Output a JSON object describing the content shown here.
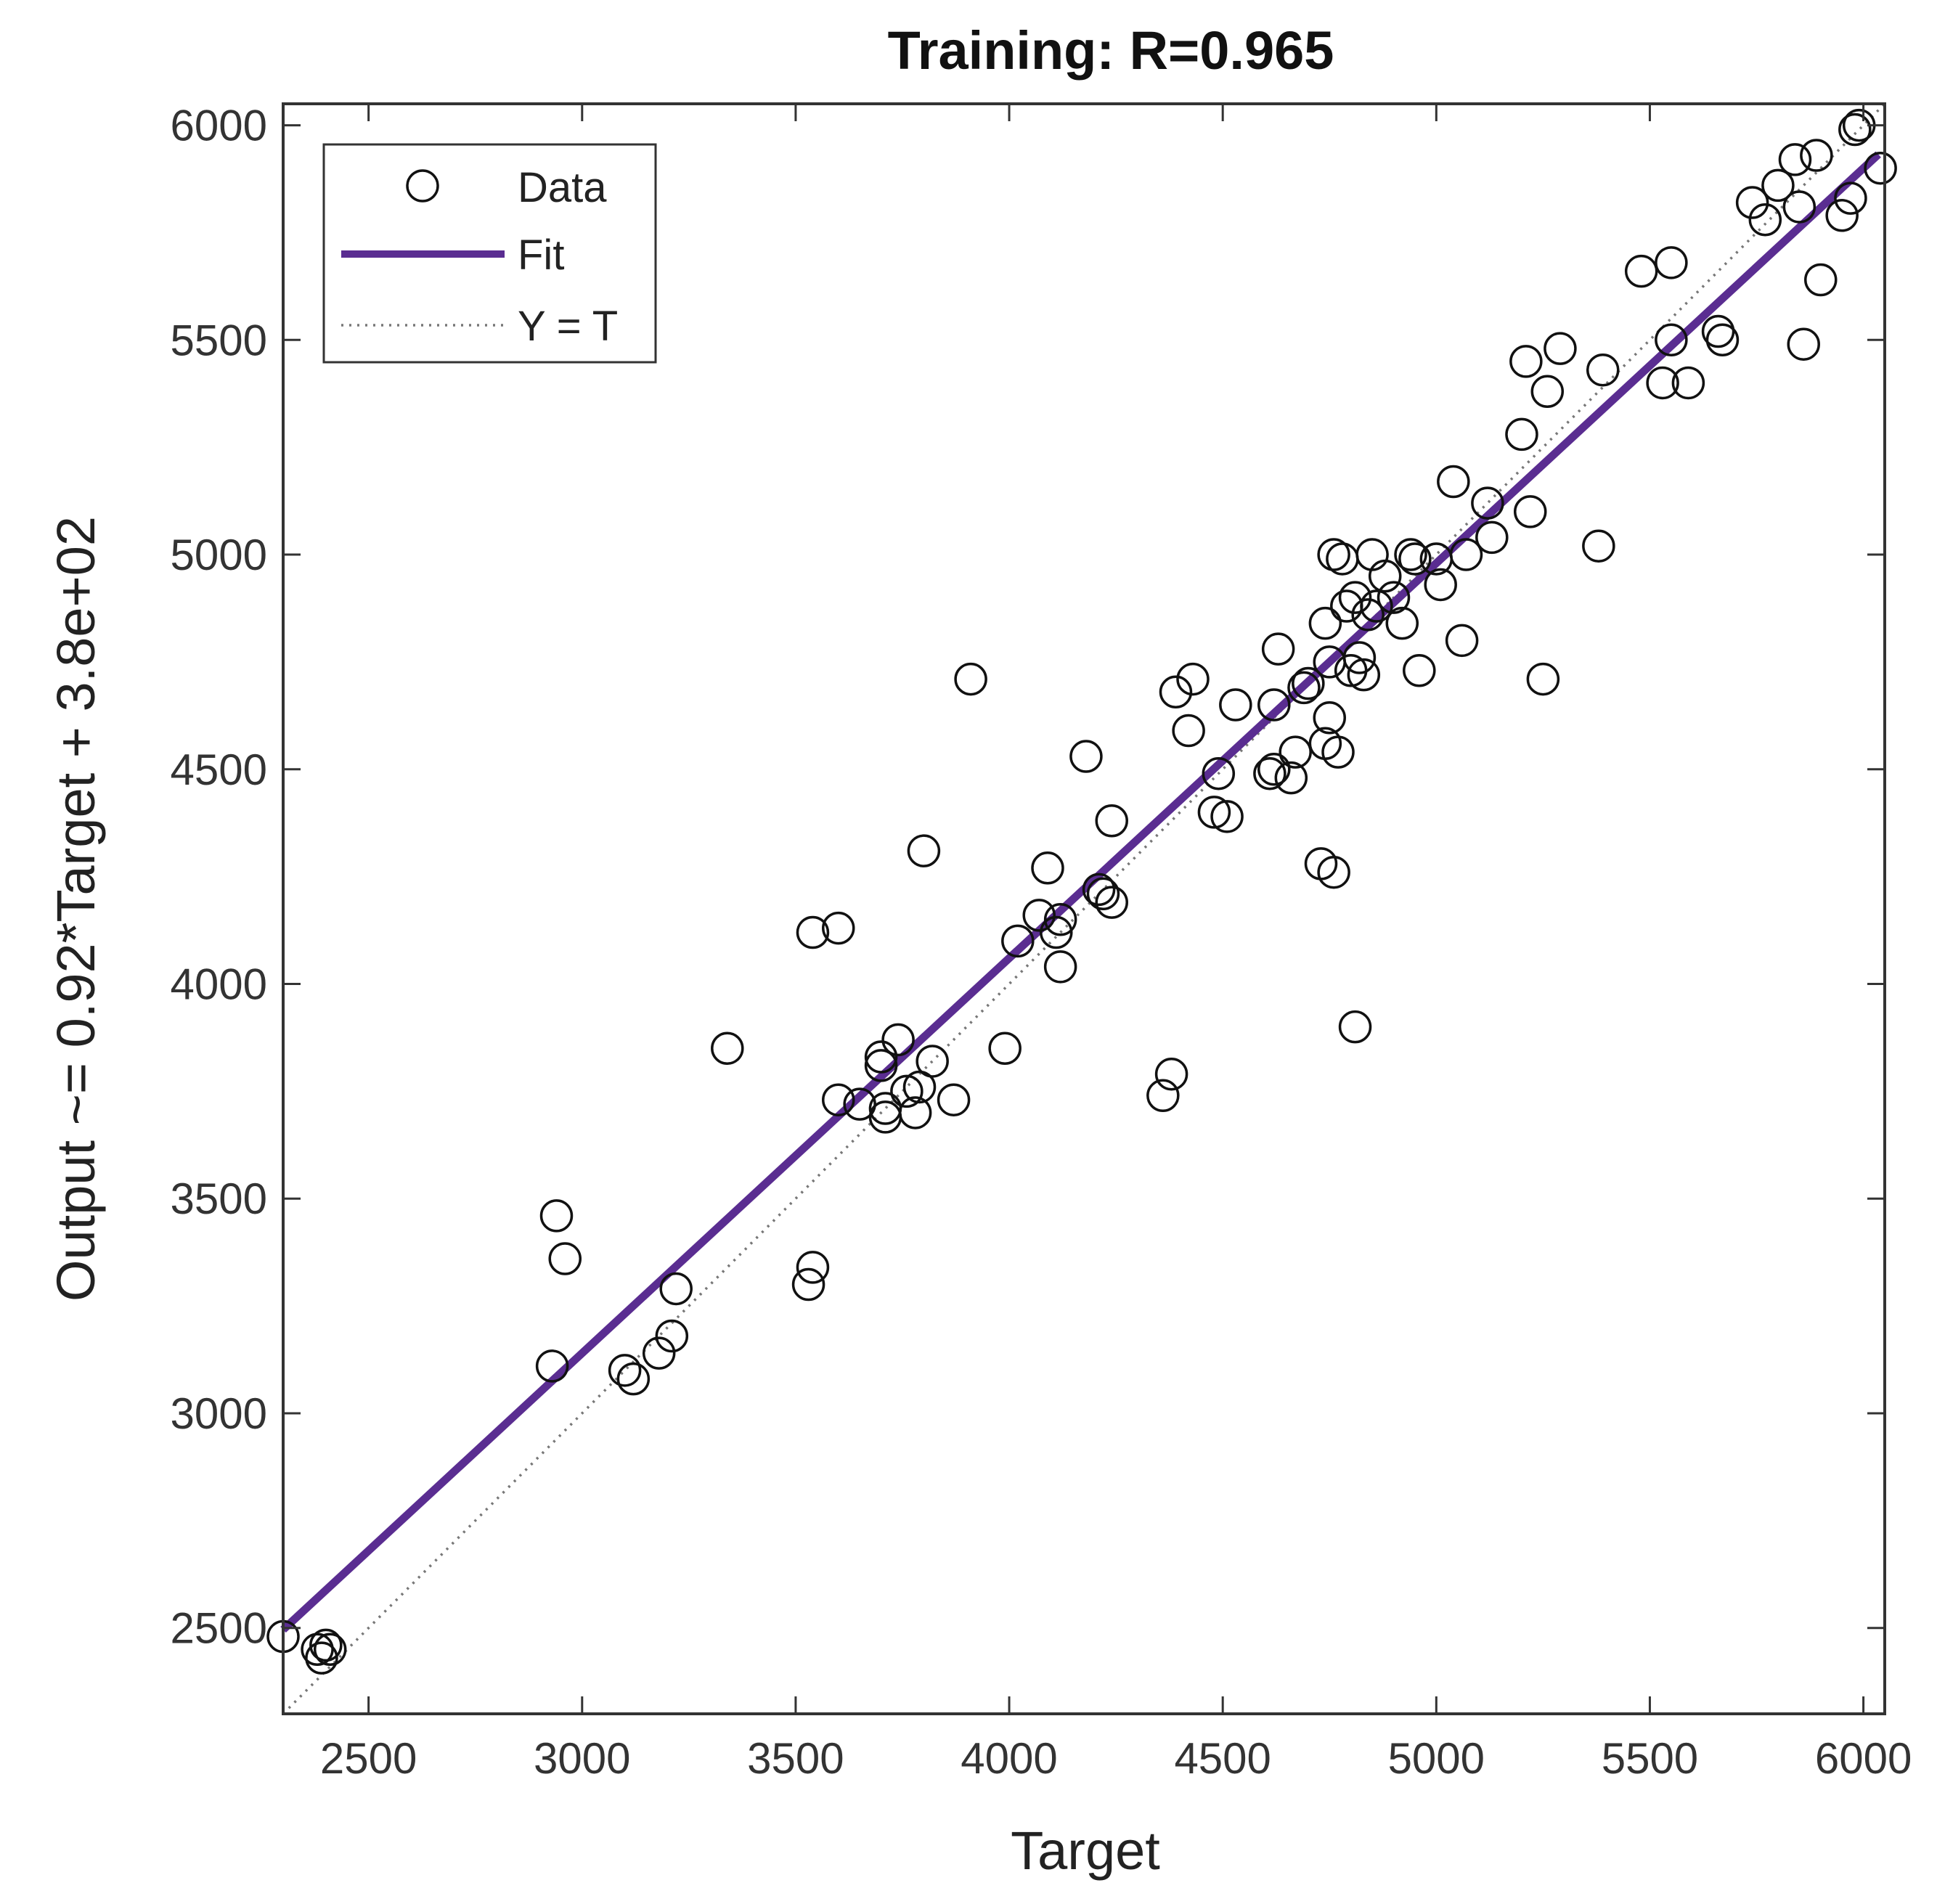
{
  "chart_data": {
    "type": "scatter",
    "title": "Training: R=0.965",
    "xlabel": "Target",
    "ylabel": "Output ~= 0.92*Target + 3.8e+02",
    "xlim": [
      2300,
      6050
    ],
    "ylim": [
      2300,
      6050
    ],
    "xticks": [
      2500,
      3000,
      3500,
      4000,
      4500,
      5000,
      5500,
      6000
    ],
    "yticks": [
      2500,
      3000,
      3500,
      4000,
      4500,
      5000,
      5500,
      6000
    ],
    "grid": false,
    "legend_position": "top-left",
    "colors": {
      "fit": "#5a2d91",
      "data": "#111111",
      "identity": "#777777",
      "axes": "#333333"
    },
    "legend": [
      {
        "name": "Data",
        "style": "circle-marker"
      },
      {
        "name": "Fit",
        "style": "solid-line"
      },
      {
        "name": "Y = T",
        "style": "dotted-line"
      }
    ],
    "series": [
      {
        "name": "Data",
        "type": "scatter",
        "points": [
          [
            2300,
            2480
          ],
          [
            2380,
            2450
          ],
          [
            2400,
            2460
          ],
          [
            2390,
            2430
          ],
          [
            2410,
            2450
          ],
          [
            2930,
            3110
          ],
          [
            2940,
            3460
          ],
          [
            2960,
            3360
          ],
          [
            3100,
            3100
          ],
          [
            3120,
            3080
          ],
          [
            3180,
            3140
          ],
          [
            3210,
            3180
          ],
          [
            3220,
            3290
          ],
          [
            3340,
            3850
          ],
          [
            3530,
            3300
          ],
          [
            3540,
            3340
          ],
          [
            3540,
            4120
          ],
          [
            3600,
            4130
          ],
          [
            3600,
            3730
          ],
          [
            3650,
            3720
          ],
          [
            3700,
            3830
          ],
          [
            3700,
            3810
          ],
          [
            3710,
            3690
          ],
          [
            3710,
            3710
          ],
          [
            3740,
            3870
          ],
          [
            3760,
            3750
          ],
          [
            3780,
            3700
          ],
          [
            3790,
            3760
          ],
          [
            3800,
            4310
          ],
          [
            3820,
            3820
          ],
          [
            3870,
            3730
          ],
          [
            3910,
            4710
          ],
          [
            3990,
            3850
          ],
          [
            4020,
            4100
          ],
          [
            4070,
            4160
          ],
          [
            4090,
            4270
          ],
          [
            4110,
            4120
          ],
          [
            4120,
            4040
          ],
          [
            4120,
            4150
          ],
          [
            4180,
            4530
          ],
          [
            4210,
            4220
          ],
          [
            4220,
            4210
          ],
          [
            4240,
            4380
          ],
          [
            4240,
            4190
          ],
          [
            4360,
            3740
          ],
          [
            4380,
            3790
          ],
          [
            4390,
            4680
          ],
          [
            4420,
            4590
          ],
          [
            4430,
            4710
          ],
          [
            4480,
            4400
          ],
          [
            4490,
            4490
          ],
          [
            4510,
            4390
          ],
          [
            4530,
            4650
          ],
          [
            4610,
            4490
          ],
          [
            4620,
            4500
          ],
          [
            4620,
            4650
          ],
          [
            4630,
            4780
          ],
          [
            4660,
            4480
          ],
          [
            4670,
            4540
          ],
          [
            4690,
            4690
          ],
          [
            4700,
            4700
          ],
          [
            4730,
            4280
          ],
          [
            4740,
            4560
          ],
          [
            4740,
            4840
          ],
          [
            4750,
            4750
          ],
          [
            4750,
            4620
          ],
          [
            4760,
            4260
          ],
          [
            4760,
            5000
          ],
          [
            4770,
            4540
          ],
          [
            4780,
            4990
          ],
          [
            4790,
            4880
          ],
          [
            4800,
            4730
          ],
          [
            4810,
            3900
          ],
          [
            4810,
            4900
          ],
          [
            4820,
            4760
          ],
          [
            4830,
            4720
          ],
          [
            4840,
            4860
          ],
          [
            4850,
            5000
          ],
          [
            4860,
            4880
          ],
          [
            4880,
            4950
          ],
          [
            4900,
            4900
          ],
          [
            4920,
            4840
          ],
          [
            4940,
            5000
          ],
          [
            4950,
            4990
          ],
          [
            4960,
            4730
          ],
          [
            5000,
            4990
          ],
          [
            5010,
            4930
          ],
          [
            5040,
            5170
          ],
          [
            5060,
            4800
          ],
          [
            5070,
            5000
          ],
          [
            5120,
            5120
          ],
          [
            5130,
            5040
          ],
          [
            5200,
            5280
          ],
          [
            5210,
            5450
          ],
          [
            5220,
            5100
          ],
          [
            5250,
            4710
          ],
          [
            5260,
            5380
          ],
          [
            5290,
            5480
          ],
          [
            5380,
            5020
          ],
          [
            5390,
            5430
          ],
          [
            5480,
            5660
          ],
          [
            5530,
            5400
          ],
          [
            5550,
            5500
          ],
          [
            5550,
            5680
          ],
          [
            5590,
            5400
          ],
          [
            5660,
            5520
          ],
          [
            5670,
            5500
          ],
          [
            5740,
            5820
          ],
          [
            5770,
            5780
          ],
          [
            5800,
            5860
          ],
          [
            5840,
            5920
          ],
          [
            5850,
            5810
          ],
          [
            5860,
            5490
          ],
          [
            5890,
            5930
          ],
          [
            5900,
            5640
          ],
          [
            5950,
            5790
          ],
          [
            5970,
            5830
          ],
          [
            5980,
            5990
          ],
          [
            5990,
            6000
          ],
          [
            6040,
            5900
          ]
        ]
      },
      {
        "name": "Fit",
        "type": "line",
        "slope": 0.92,
        "intercept": 380
      },
      {
        "name": "Y = T",
        "type": "line",
        "slope": 1,
        "intercept": 0
      }
    ]
  }
}
